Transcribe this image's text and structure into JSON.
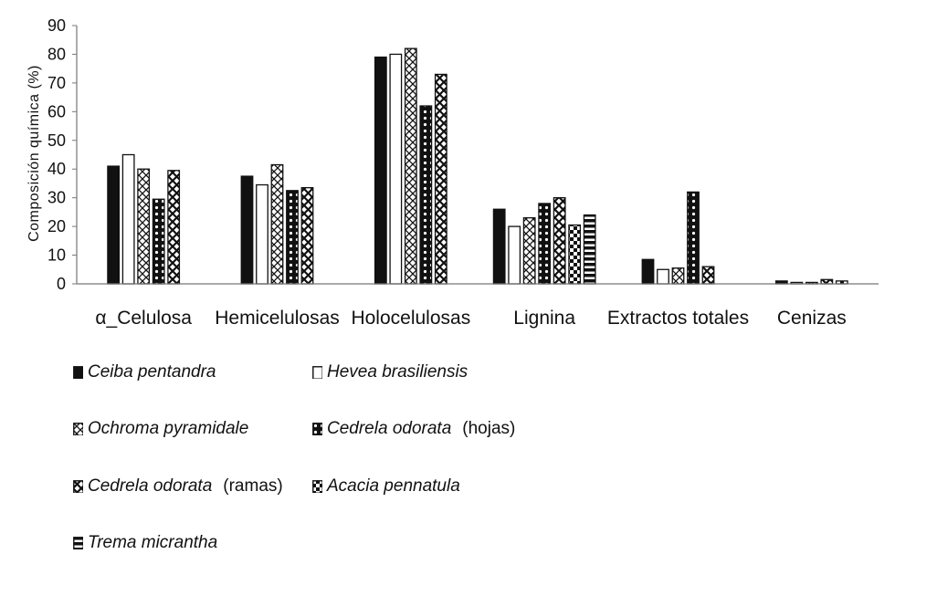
{
  "chart_data": {
    "type": "bar",
    "title": "",
    "xlabel": "",
    "ylabel": "Composición química (%)",
    "ylim": [
      0,
      90
    ],
    "yticks": [
      0,
      10,
      20,
      30,
      40,
      50,
      60,
      70,
      80,
      90
    ],
    "grid": false,
    "legend_position": "bottom",
    "categories": [
      "α_Celulosa",
      "Hemicelulosas",
      "Holocelulosas",
      "Lignina",
      "Extractos totales",
      "Cenizas"
    ],
    "series": [
      {
        "name": "Ceiba pentandra",
        "note": "",
        "pattern": "solid",
        "values": [
          41,
          37.5,
          79,
          26,
          8.5,
          1
        ]
      },
      {
        "name": "Hevea brasiliensis",
        "note": "",
        "pattern": "white",
        "values": [
          45,
          34.5,
          80,
          20,
          5,
          0.5
        ]
      },
      {
        "name": "Ochroma pyramidale",
        "note": "",
        "pattern": "diagonal",
        "values": [
          40,
          41.5,
          82,
          23,
          5.5,
          0.5
        ]
      },
      {
        "name": "Cedrela odorata",
        "note": "(hojas)",
        "pattern": "dots",
        "values": [
          29.5,
          32.5,
          62,
          28,
          32,
          null
        ]
      },
      {
        "name": "Cedrela odorata",
        "note": "(ramas)",
        "pattern": "diamond",
        "values": [
          39.5,
          33.5,
          73,
          30,
          6,
          1.5
        ]
      },
      {
        "name": "Acacia pennatula",
        "note": "",
        "pattern": "checker",
        "values": [
          null,
          null,
          null,
          20.5,
          null,
          1
        ]
      },
      {
        "name": "Trema micrantha",
        "note": "",
        "pattern": "hstripe",
        "values": [
          null,
          null,
          null,
          24,
          null,
          null
        ]
      }
    ]
  }
}
